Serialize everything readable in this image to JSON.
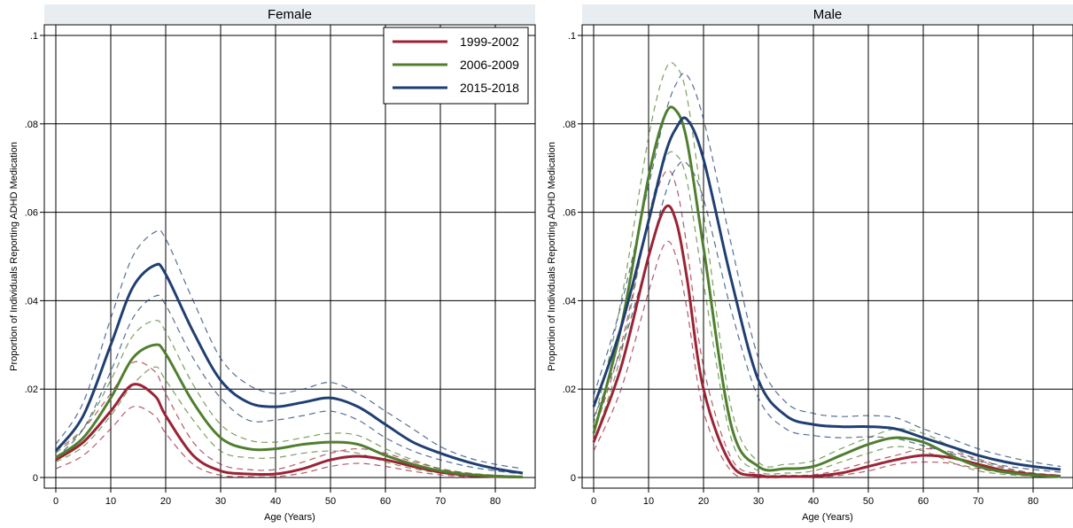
{
  "chart_data": [
    {
      "type": "line",
      "title": "Female",
      "xlabel": "Age (Years)",
      "ylabel": "Proportion of Individuals Reporting ADHD Medication",
      "xlim": [
        0,
        85
      ],
      "ylim": [
        0,
        0.1
      ],
      "x_ticks": [
        "0",
        "10",
        "20",
        "30",
        "40",
        "50",
        "60",
        "70",
        "80"
      ],
      "y_ticks": [
        "0",
        ".02",
        ".04",
        ".06",
        ".08",
        ".1"
      ],
      "grid": true,
      "legend": {
        "position": "top-right",
        "entries": [
          "1999-2002",
          "2006-2009",
          "2015-2018"
        ]
      },
      "x": [
        0,
        5,
        10,
        14,
        18,
        20,
        25,
        30,
        35,
        40,
        45,
        50,
        55,
        60,
        65,
        70,
        75,
        80,
        85
      ],
      "series": [
        {
          "name": "1999-2002",
          "color": "#9b2335",
          "values": [
            0.004,
            0.008,
            0.015,
            0.021,
            0.0185,
            0.014,
            0.005,
            0.0015,
            0.0008,
            0.0008,
            0.002,
            0.004,
            0.0048,
            0.004,
            0.0025,
            0.0012,
            0.0005,
            0.0002,
            0.0001
          ],
          "lower": [
            0.002,
            0.005,
            0.011,
            0.016,
            0.014,
            0.01,
            0.003,
            0.0005,
            0.0002,
            0.0002,
            0.001,
            0.0025,
            0.0032,
            0.0025,
            0.0014,
            0.0006,
            0.0002,
            0.0001,
            0.0
          ],
          "upper": [
            0.006,
            0.011,
            0.019,
            0.026,
            0.024,
            0.019,
            0.008,
            0.003,
            0.0018,
            0.0018,
            0.0035,
            0.0055,
            0.0065,
            0.0055,
            0.0036,
            0.002,
            0.001,
            0.0005,
            0.0002
          ]
        },
        {
          "name": "2006-2009",
          "color": "#4f7f2e",
          "values": [
            0.0045,
            0.009,
            0.018,
            0.027,
            0.03,
            0.028,
            0.017,
            0.009,
            0.0065,
            0.0065,
            0.0075,
            0.008,
            0.0075,
            0.005,
            0.003,
            0.0015,
            0.0007,
            0.0003,
            0.0001
          ],
          "lower": [
            0.0035,
            0.007,
            0.014,
            0.021,
            0.025,
            0.022,
            0.013,
            0.006,
            0.0045,
            0.0045,
            0.0055,
            0.006,
            0.0055,
            0.0035,
            0.002,
            0.001,
            0.0004,
            0.0002,
            0.0001
          ],
          "upper": [
            0.0055,
            0.011,
            0.022,
            0.032,
            0.0355,
            0.033,
            0.021,
            0.012,
            0.0085,
            0.008,
            0.009,
            0.01,
            0.0095,
            0.0065,
            0.004,
            0.002,
            0.001,
            0.0005,
            0.0003
          ]
        },
        {
          "name": "2015-2018",
          "color": "#1f3f73",
          "values": [
            0.006,
            0.014,
            0.03,
            0.043,
            0.048,
            0.046,
            0.033,
            0.022,
            0.017,
            0.016,
            0.017,
            0.018,
            0.016,
            0.012,
            0.008,
            0.0055,
            0.0035,
            0.002,
            0.001
          ],
          "lower": [
            0.0045,
            0.011,
            0.024,
            0.036,
            0.041,
            0.039,
            0.027,
            0.018,
            0.013,
            0.013,
            0.014,
            0.015,
            0.013,
            0.009,
            0.006,
            0.004,
            0.0025,
            0.0015,
            0.0008
          ],
          "upper": [
            0.0075,
            0.017,
            0.036,
            0.05,
            0.0555,
            0.054,
            0.04,
            0.027,
            0.021,
            0.019,
            0.02,
            0.0215,
            0.019,
            0.015,
            0.011,
            0.007,
            0.0045,
            0.003,
            0.002
          ]
        }
      ]
    },
    {
      "type": "line",
      "title": "Male",
      "xlabel": "Age (Years)",
      "ylabel": "Proportion of Individuals Reporting ADHD Medication",
      "xlim": [
        0,
        85
      ],
      "ylim": [
        0,
        0.1
      ],
      "x_ticks": [
        "0",
        "10",
        "20",
        "30",
        "40",
        "50",
        "60",
        "70",
        "80"
      ],
      "y_ticks": [
        "0",
        ".02",
        ".04",
        ".06",
        ".08",
        ".1"
      ],
      "grid": true,
      "x": [
        0,
        5,
        10,
        13,
        15,
        17,
        20,
        25,
        30,
        35,
        40,
        45,
        50,
        55,
        60,
        65,
        70,
        75,
        80,
        85
      ],
      "series": [
        {
          "name": "1999-2002",
          "color": "#9b2335",
          "values": [
            0.008,
            0.025,
            0.05,
            0.061,
            0.058,
            0.045,
            0.02,
            0.003,
            0.0004,
            0.0002,
            0.0003,
            0.001,
            0.0025,
            0.004,
            0.005,
            0.0045,
            0.003,
            0.0015,
            0.0007,
            0.0003
          ],
          "lower": [
            0.006,
            0.02,
            0.042,
            0.053,
            0.05,
            0.038,
            0.015,
            0.0015,
            0.0001,
            0.0,
            0.0001,
            0.0005,
            0.0015,
            0.003,
            0.0035,
            0.0032,
            0.002,
            0.001,
            0.0004,
            0.0001
          ],
          "upper": [
            0.01,
            0.03,
            0.058,
            0.069,
            0.066,
            0.052,
            0.025,
            0.0045,
            0.0008,
            0.0005,
            0.0006,
            0.0018,
            0.0035,
            0.005,
            0.0065,
            0.0058,
            0.0042,
            0.0022,
            0.001,
            0.0005
          ]
        },
        {
          "name": "2006-2009",
          "color": "#4f7f2e",
          "values": [
            0.01,
            0.034,
            0.068,
            0.082,
            0.083,
            0.076,
            0.052,
            0.012,
            0.0025,
            0.002,
            0.0025,
            0.005,
            0.0075,
            0.009,
            0.008,
            0.005,
            0.0025,
            0.0012,
            0.0005,
            0.0002
          ],
          "lower": [
            0.008,
            0.028,
            0.059,
            0.072,
            0.073,
            0.067,
            0.044,
            0.009,
            0.0015,
            0.001,
            0.0015,
            0.0035,
            0.0055,
            0.007,
            0.006,
            0.0035,
            0.0015,
            0.0007,
            0.0003,
            0.0001
          ],
          "upper": [
            0.012,
            0.04,
            0.077,
            0.092,
            0.093,
            0.086,
            0.06,
            0.016,
            0.0035,
            0.003,
            0.0038,
            0.0065,
            0.009,
            0.011,
            0.01,
            0.007,
            0.0038,
            0.002,
            0.001,
            0.0005
          ]
        },
        {
          "name": "2015-2018",
          "color": "#1f3f73",
          "values": [
            0.016,
            0.034,
            0.058,
            0.073,
            0.079,
            0.081,
            0.072,
            0.045,
            0.022,
            0.014,
            0.012,
            0.0115,
            0.0115,
            0.011,
            0.009,
            0.007,
            0.005,
            0.0035,
            0.0025,
            0.0018
          ],
          "lower": [
            0.0135,
            0.029,
            0.05,
            0.064,
            0.07,
            0.071,
            0.063,
            0.038,
            0.018,
            0.011,
            0.0095,
            0.009,
            0.0092,
            0.0088,
            0.0072,
            0.0055,
            0.0038,
            0.0026,
            0.0018,
            0.0012
          ],
          "upper": [
            0.0185,
            0.039,
            0.066,
            0.082,
            0.089,
            0.091,
            0.081,
            0.053,
            0.027,
            0.017,
            0.0145,
            0.0138,
            0.014,
            0.0135,
            0.011,
            0.0088,
            0.0065,
            0.0048,
            0.0035,
            0.0025
          ]
        }
      ]
    }
  ]
}
